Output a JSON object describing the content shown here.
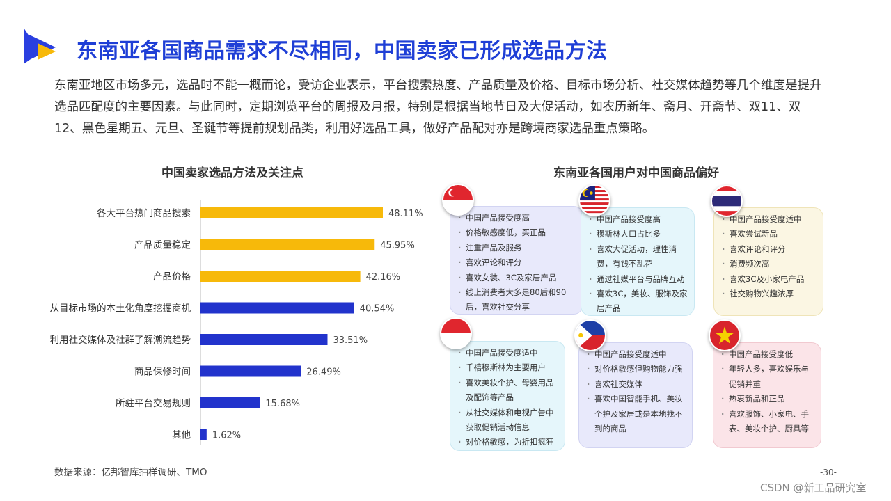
{
  "header": {
    "title": "东南亚各国商品需求不尽相同，中国卖家已形成选品方法",
    "intro": "东南亚地区市场多元，选品时不能一概而论，受访企业表示，平台搜索热度、产品质量及价格、目标市场分析、社交媒体趋势等几个维度是提升选品匹配度的主要因素。与此同时，定期浏览平台的周报及月报，特别是根据当地节日及大促活动，如农历新年、斋月、开斋节、双11、双12、黑色星期五、元旦、圣诞节等提前规划品类，利用好选品工具，做好产品配对亦是跨境商家选品重点策略。"
  },
  "left_title": "中国卖家选品方法及关注点",
  "right_title": "东南亚各国用户对中国商品偏好",
  "chart_data": {
    "type": "bar",
    "orientation": "horizontal",
    "title": "中国卖家选品方法及关注点",
    "categories": [
      "各大平台热门商品搜索",
      "产品质量稳定",
      "产品价格",
      "从目标市场的本土化角度挖掘商机",
      "利用社交媒体及社群了解潮流趋势",
      "商品保修时间",
      "所驻平台交易规则",
      "其他"
    ],
    "values": [
      48.11,
      45.95,
      42.16,
      40.54,
      33.51,
      26.49,
      15.68,
      1.62
    ],
    "labels": [
      "48.11%",
      "45.95%",
      "42.16%",
      "40.54%",
      "33.51%",
      "26.49%",
      "15.68%",
      "1.62%"
    ],
    "colors": [
      "#f7b90a",
      "#f7b90a",
      "#f7b90a",
      "#2233cc",
      "#2233cc",
      "#2233cc",
      "#2233cc",
      "#2233cc"
    ],
    "xlim": [
      0,
      60
    ],
    "grid": false
  },
  "countries": [
    {
      "flag": "singapore-flag",
      "theme": "purple",
      "items": [
        "中国产品接受度高",
        "价格敏感度低，买正品",
        "注重产品及服务",
        "喜欢评论和评分",
        "喜欢女装、3C及家居产品",
        "线上消费者大多是80后和90后，喜欢社交分享"
      ]
    },
    {
      "flag": "malaysia-flag",
      "theme": "cyan",
      "items": [
        "中国产品接受度高",
        "穆斯林人口占比多",
        "喜欢大促活动，理性消费，有钱不乱花",
        "通过社媒平台与品牌互动",
        "喜欢3C，美妆、服饰及家居产品"
      ]
    },
    {
      "flag": "thailand-flag",
      "theme": "yellow",
      "items": [
        "中国产品接受度适中",
        "喜欢尝试新品",
        "喜欢评论和评分",
        "消费频次高",
        "喜欢3C及小家电产品",
        "社交购物兴趣浓厚"
      ]
    },
    {
      "flag": "indonesia-flag",
      "theme": "cyan",
      "items": [
        "中国产品接受度适中",
        "千禧穆斯林为主要用户",
        "喜欢美妆个护、母婴用品及配饰等产品",
        "从社交媒体和电视广告中获取促销活动信息",
        "对价格敏感，为折扣疯狂"
      ]
    },
    {
      "flag": "philippines-flag",
      "theme": "purple",
      "items": [
        "中国产品接受度适中",
        "对价格敏感但购物能力强",
        "喜欢社交媒体",
        "喜欢中国智能手机、美妆个护及家居或是本地找不到的商品"
      ]
    },
    {
      "flag": "vietnam-flag",
      "theme": "pink",
      "items": [
        "中国产品接受度低",
        "年轻人多，喜欢娱乐与促销并重",
        "热衷新品和正品",
        "喜欢服饰、小家电、手表、美妆个护、厨具等"
      ]
    }
  ],
  "footer": {
    "source": "数据来源：亿邦智库抽样调研、TMO",
    "page": "-30-",
    "watermark": "CSDN @新工品研究室"
  }
}
